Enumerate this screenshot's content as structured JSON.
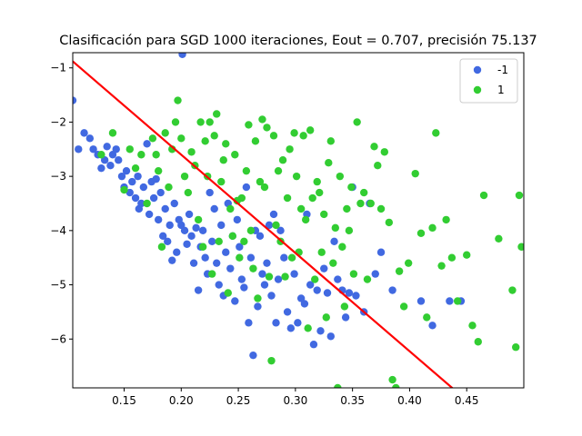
{
  "chart_data": {
    "type": "scatter",
    "title": "Clasificación para SGD 1000 iteraciones, Eout = 0.707, precisión 75.137",
    "xlabel": "",
    "ylabel": "",
    "xlim": [
      0.105,
      0.5
    ],
    "ylim": [
      -6.9,
      -0.72
    ],
    "xticks": [
      0.15,
      0.2,
      0.25,
      0.3,
      0.35,
      0.4,
      0.45
    ],
    "xtick_labels": [
      "0.15",
      "0.20",
      "0.25",
      "0.30",
      "0.35",
      "0.40",
      "0.45"
    ],
    "yticks": [
      -1,
      -2,
      -3,
      -4,
      -5,
      -6
    ],
    "ytick_labels": [
      "−1",
      "−2",
      "−3",
      "−4",
      "−5",
      "−6"
    ],
    "grid": false,
    "legend_position": "top-right",
    "series": [
      {
        "name": "-1",
        "color": "#4169e1",
        "points": [
          [
            0.105,
            -1.6
          ],
          [
            0.11,
            -2.5
          ],
          [
            0.115,
            -2.2
          ],
          [
            0.12,
            -2.3
          ],
          [
            0.123,
            -2.5
          ],
          [
            0.127,
            -2.6
          ],
          [
            0.13,
            -2.85
          ],
          [
            0.133,
            -2.7
          ],
          [
            0.135,
            -2.45
          ],
          [
            0.138,
            -2.8
          ],
          [
            0.14,
            -2.6
          ],
          [
            0.143,
            -2.5
          ],
          [
            0.145,
            -2.7
          ],
          [
            0.148,
            -3.0
          ],
          [
            0.15,
            -3.2
          ],
          [
            0.152,
            -2.9
          ],
          [
            0.155,
            -3.3
          ],
          [
            0.157,
            -3.1
          ],
          [
            0.16,
            -3.4
          ],
          [
            0.162,
            -3.0
          ],
          [
            0.163,
            -3.6
          ],
          [
            0.165,
            -3.5
          ],
          [
            0.167,
            -3.2
          ],
          [
            0.17,
            -2.4
          ],
          [
            0.172,
            -3.7
          ],
          [
            0.174,
            -3.1
          ],
          [
            0.176,
            -3.4
          ],
          [
            0.178,
            -3.05
          ],
          [
            0.18,
            -3.8
          ],
          [
            0.182,
            -3.3
          ],
          [
            0.184,
            -4.1
          ],
          [
            0.186,
            -3.6
          ],
          [
            0.188,
            -4.2
          ],
          [
            0.19,
            -3.9
          ],
          [
            0.192,
            -4.55
          ],
          [
            0.194,
            -3.5
          ],
          [
            0.196,
            -4.4
          ],
          [
            0.198,
            -3.8
          ],
          [
            0.2,
            -3.9
          ],
          [
            0.201,
            -0.75
          ],
          [
            0.203,
            -4.0
          ],
          [
            0.205,
            -4.25
          ],
          [
            0.207,
            -3.7
          ],
          [
            0.209,
            -4.1
          ],
          [
            0.211,
            -4.6
          ],
          [
            0.213,
            -3.95
          ],
          [
            0.215,
            -5.1
          ],
          [
            0.217,
            -4.3
          ],
          [
            0.219,
            -4.0
          ],
          [
            0.221,
            -4.5
          ],
          [
            0.223,
            -4.8
          ],
          [
            0.225,
            -3.3
          ],
          [
            0.227,
            -4.2
          ],
          [
            0.229,
            -3.6
          ],
          [
            0.231,
            -4.6
          ],
          [
            0.233,
            -5.0
          ],
          [
            0.235,
            -3.9
          ],
          [
            0.237,
            -5.2
          ],
          [
            0.239,
            -4.4
          ],
          [
            0.241,
            -3.5
          ],
          [
            0.243,
            -4.7
          ],
          [
            0.245,
            -4.1
          ],
          [
            0.247,
            -5.3
          ],
          [
            0.249,
            -3.8
          ],
          [
            0.251,
            -4.3
          ],
          [
            0.253,
            -4.9
          ],
          [
            0.255,
            -5.05
          ],
          [
            0.257,
            -3.2
          ],
          [
            0.259,
            -5.7
          ],
          [
            0.261,
            -4.5
          ],
          [
            0.263,
            -6.3
          ],
          [
            0.265,
            -4.0
          ],
          [
            0.267,
            -5.4
          ],
          [
            0.269,
            -4.1
          ],
          [
            0.271,
            -4.8
          ],
          [
            0.273,
            -5.0
          ],
          [
            0.275,
            -4.6
          ],
          [
            0.277,
            -3.9
          ],
          [
            0.279,
            -5.2
          ],
          [
            0.281,
            -3.7
          ],
          [
            0.283,
            -5.7
          ],
          [
            0.285,
            -4.9
          ],
          [
            0.287,
            -4.0
          ],
          [
            0.29,
            -4.5
          ],
          [
            0.293,
            -5.5
          ],
          [
            0.296,
            -5.8
          ],
          [
            0.299,
            -4.8
          ],
          [
            0.302,
            -5.7
          ],
          [
            0.305,
            -5.25
          ],
          [
            0.308,
            -5.35
          ],
          [
            0.31,
            -3.7
          ],
          [
            0.313,
            -5.0
          ],
          [
            0.316,
            -6.1
          ],
          [
            0.319,
            -5.1
          ],
          [
            0.322,
            -5.85
          ],
          [
            0.325,
            -4.7
          ],
          [
            0.328,
            -5.15
          ],
          [
            0.331,
            -5.95
          ],
          [
            0.334,
            -4.2
          ],
          [
            0.337,
            -4.9
          ],
          [
            0.341,
            -5.1
          ],
          [
            0.344,
            -5.6
          ],
          [
            0.347,
            -5.15
          ],
          [
            0.35,
            -3.2
          ],
          [
            0.353,
            -5.2
          ],
          [
            0.36,
            -5.5
          ],
          [
            0.365,
            -3.5
          ],
          [
            0.37,
            -4.8
          ],
          [
            0.375,
            -4.4
          ],
          [
            0.385,
            -5.1
          ],
          [
            0.41,
            -5.3
          ],
          [
            0.42,
            -5.75
          ],
          [
            0.435,
            -5.3
          ],
          [
            0.445,
            -5.3
          ]
        ]
      },
      {
        "name": "1",
        "color": "#32cd32",
        "points": [
          [
            0.13,
            -2.6
          ],
          [
            0.14,
            -2.2
          ],
          [
            0.15,
            -3.25
          ],
          [
            0.155,
            -2.5
          ],
          [
            0.16,
            -2.85
          ],
          [
            0.165,
            -2.6
          ],
          [
            0.17,
            -3.5
          ],
          [
            0.175,
            -2.3
          ],
          [
            0.178,
            -2.6
          ],
          [
            0.18,
            -2.9
          ],
          [
            0.183,
            -4.3
          ],
          [
            0.186,
            -2.2
          ],
          [
            0.189,
            -3.2
          ],
          [
            0.192,
            -2.5
          ],
          [
            0.195,
            -2.0
          ],
          [
            0.197,
            -1.6
          ],
          [
            0.2,
            -2.3
          ],
          [
            0.203,
            -3.0
          ],
          [
            0.206,
            -3.3
          ],
          [
            0.209,
            -2.55
          ],
          [
            0.212,
            -2.8
          ],
          [
            0.215,
            -3.8
          ],
          [
            0.217,
            -2.0
          ],
          [
            0.219,
            -4.3
          ],
          [
            0.221,
            -2.35
          ],
          [
            0.223,
            -3.0
          ],
          [
            0.225,
            -2.0
          ],
          [
            0.227,
            -4.8
          ],
          [
            0.229,
            -2.25
          ],
          [
            0.231,
            -1.85
          ],
          [
            0.233,
            -4.2
          ],
          [
            0.235,
            -3.1
          ],
          [
            0.237,
            -2.7
          ],
          [
            0.239,
            -2.4
          ],
          [
            0.241,
            -5.15
          ],
          [
            0.243,
            -3.6
          ],
          [
            0.245,
            -4.1
          ],
          [
            0.247,
            -2.6
          ],
          [
            0.249,
            -3.45
          ],
          [
            0.251,
            -4.5
          ],
          [
            0.253,
            -3.4
          ],
          [
            0.255,
            -4.2
          ],
          [
            0.257,
            -2.9
          ],
          [
            0.259,
            -2.05
          ],
          [
            0.261,
            -4.0
          ],
          [
            0.263,
            -4.7
          ],
          [
            0.265,
            -2.35
          ],
          [
            0.267,
            -5.25
          ],
          [
            0.269,
            -3.1
          ],
          [
            0.271,
            -1.95
          ],
          [
            0.273,
            -3.2
          ],
          [
            0.275,
            -2.1
          ],
          [
            0.277,
            -4.85
          ],
          [
            0.279,
            -6.4
          ],
          [
            0.281,
            -2.25
          ],
          [
            0.283,
            -3.9
          ],
          [
            0.285,
            -2.9
          ],
          [
            0.287,
            -4.2
          ],
          [
            0.289,
            -2.7
          ],
          [
            0.291,
            -4.85
          ],
          [
            0.293,
            -3.4
          ],
          [
            0.295,
            -2.5
          ],
          [
            0.297,
            -4.5
          ],
          [
            0.299,
            -2.2
          ],
          [
            0.301,
            -3.0
          ],
          [
            0.303,
            -4.4
          ],
          [
            0.305,
            -3.6
          ],
          [
            0.307,
            -2.25
          ],
          [
            0.309,
            -3.8
          ],
          [
            0.311,
            -5.8
          ],
          [
            0.313,
            -2.15
          ],
          [
            0.315,
            -3.4
          ],
          [
            0.317,
            -4.9
          ],
          [
            0.319,
            -3.1
          ],
          [
            0.321,
            -3.3
          ],
          [
            0.323,
            -4.4
          ],
          [
            0.325,
            -3.7
          ],
          [
            0.327,
            -5.6
          ],
          [
            0.329,
            -2.75
          ],
          [
            0.331,
            -2.35
          ],
          [
            0.333,
            -4.6
          ],
          [
            0.335,
            -3.95
          ],
          [
            0.337,
            -6.9
          ],
          [
            0.339,
            -3.0
          ],
          [
            0.341,
            -4.3
          ],
          [
            0.343,
            -5.4
          ],
          [
            0.345,
            -3.6
          ],
          [
            0.347,
            -4.0
          ],
          [
            0.349,
            -3.2
          ],
          [
            0.351,
            -4.8
          ],
          [
            0.354,
            -2.0
          ],
          [
            0.357,
            -3.5
          ],
          [
            0.36,
            -3.3
          ],
          [
            0.363,
            -4.9
          ],
          [
            0.366,
            -3.5
          ],
          [
            0.369,
            -2.45
          ],
          [
            0.372,
            -2.8
          ],
          [
            0.375,
            -3.6
          ],
          [
            0.378,
            -2.55
          ],
          [
            0.382,
            -3.85
          ],
          [
            0.385,
            -6.75
          ],
          [
            0.388,
            -6.9
          ],
          [
            0.391,
            -4.75
          ],
          [
            0.395,
            -5.4
          ],
          [
            0.399,
            -4.6
          ],
          [
            0.405,
            -2.95
          ],
          [
            0.41,
            -4.05
          ],
          [
            0.415,
            -5.6
          ],
          [
            0.42,
            -3.95
          ],
          [
            0.423,
            -2.2
          ],
          [
            0.428,
            -4.65
          ],
          [
            0.432,
            -3.8
          ],
          [
            0.437,
            -4.5
          ],
          [
            0.442,
            -5.3
          ],
          [
            0.45,
            -4.45
          ],
          [
            0.455,
            -5.75
          ],
          [
            0.46,
            -6.05
          ],
          [
            0.465,
            -3.35
          ],
          [
            0.478,
            -4.15
          ],
          [
            0.49,
            -5.1
          ],
          [
            0.493,
            -6.15
          ],
          [
            0.496,
            -3.35
          ],
          [
            0.498,
            -4.3
          ]
        ]
      }
    ],
    "line": {
      "color": "#ff0000",
      "points": [
        [
          0.105,
          -0.88
        ],
        [
          0.44,
          -6.95
        ]
      ]
    }
  }
}
